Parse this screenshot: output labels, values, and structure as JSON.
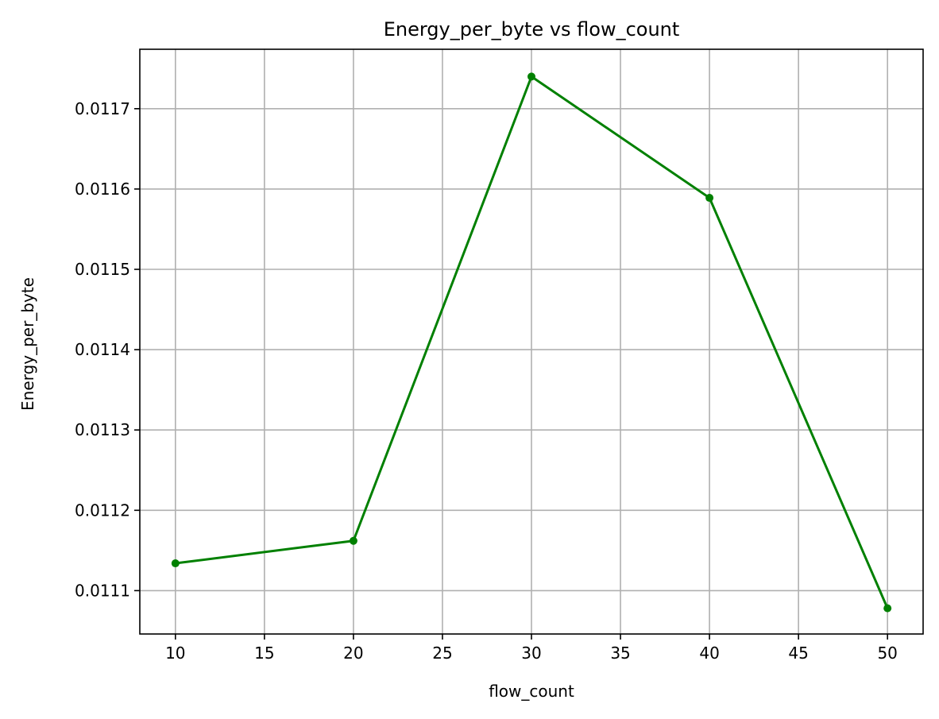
{
  "chart_data": {
    "type": "line",
    "title": "Energy_per_byte vs flow_count",
    "xlabel": "flow_count",
    "ylabel": "Energy_per_byte",
    "x": [
      10,
      20,
      30,
      40,
      50
    ],
    "series": [
      {
        "values": [
          0.011134,
          0.011162,
          0.01174,
          0.011589,
          0.011078
        ],
        "color": "#008000",
        "marker": "circle"
      }
    ],
    "xlim": [
      8,
      52
    ],
    "ylim": [
      0.011046,
      0.011774
    ],
    "xticks": [
      10,
      15,
      20,
      25,
      30,
      35,
      40,
      45,
      50
    ],
    "xtick_labels": [
      "10",
      "15",
      "20",
      "25",
      "30",
      "35",
      "40",
      "45",
      "50"
    ],
    "yticks": [
      0.0111,
      0.0112,
      0.0113,
      0.0114,
      0.0115,
      0.0116,
      0.0117
    ],
    "ytick_labels": [
      "0.0111",
      "0.0112",
      "0.0113",
      "0.0114",
      "0.0115",
      "0.0116",
      "0.0117"
    ],
    "grid": true,
    "legend": "none"
  }
}
